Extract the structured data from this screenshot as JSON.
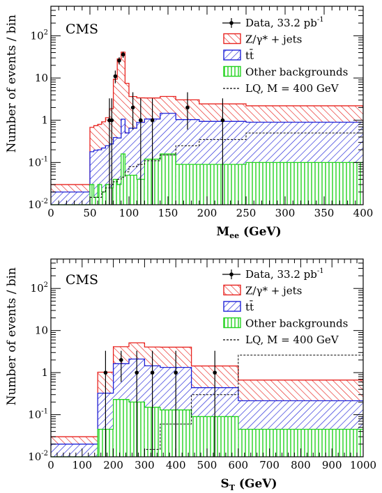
{
  "chart_data": [
    {
      "type": "histogram",
      "title": "CMS",
      "xlabel": {
        "main": "M",
        "sub": "ee",
        "unit": " (GeV)"
      },
      "ylabel": "Number of events / bin",
      "xlim": [
        0,
        400
      ],
      "ylim": [
        0.01,
        500
      ],
      "log_y": true,
      "x_ticks": [
        0,
        50,
        100,
        150,
        200,
        250,
        300,
        350,
        400
      ],
      "y_ticks": [
        {
          "value": 0.01,
          "base": "10",
          "exp": "-2"
        },
        {
          "value": 0.1,
          "base": "10",
          "exp": "-1"
        },
        {
          "value": 1,
          "base": "1",
          "exp": ""
        },
        {
          "value": 10,
          "base": "10",
          "exp": ""
        },
        {
          "value": 100,
          "base": "10",
          "exp": "2"
        }
      ],
      "legend": {
        "position": "top-right",
        "entries": [
          {
            "key": "data",
            "label": "Data, 33.2 pb",
            "sup": "-1"
          },
          {
            "key": "zjets",
            "label": "Z/γ* + jets"
          },
          {
            "key": "ttbar",
            "label": "tt̄"
          },
          {
            "key": "other",
            "label": "Other backgrounds"
          },
          {
            "key": "lq",
            "label": "LQ, M = 400 GeV"
          }
        ]
      },
      "bins": [
        [
          0,
          50
        ],
        [
          50,
          55
        ],
        [
          55,
          60
        ],
        [
          60,
          65
        ],
        [
          65,
          70
        ],
        [
          70,
          75
        ],
        [
          75,
          80
        ],
        [
          80,
          85
        ],
        [
          85,
          90
        ],
        [
          90,
          95
        ],
        [
          95,
          100
        ],
        [
          100,
          110
        ],
        [
          110,
          120
        ],
        [
          120,
          140
        ],
        [
          140,
          160
        ],
        [
          160,
          190
        ],
        [
          190,
          250
        ],
        [
          250,
          400
        ]
      ],
      "stack": {
        "other": [
          0.01,
          0.03,
          0.015,
          0.03,
          0.02,
          0.03,
          0.025,
          0.04,
          0.03,
          0.16,
          0.05,
          0.05,
          0.04,
          0.12,
          0.16,
          0.09,
          0.09,
          0.1
        ],
        "ttbar": [
          0.01,
          0.15,
          0.18,
          0.17,
          0.2,
          0.22,
          0.25,
          0.35,
          0.35,
          0.9,
          0.45,
          0.6,
          0.85,
          0.95,
          1.3,
          0.95,
          0.85,
          0.8
        ],
        "zjets": [
          0.01,
          0.5,
          0.55,
          0.6,
          0.7,
          0.9,
          1.6,
          9,
          28,
          40,
          7,
          3,
          2.5,
          2.3,
          2.2,
          2.0,
          1.5,
          1.3
        ]
      },
      "lq": [
        0,
        0.015,
        0.015,
        0.015,
        0.02,
        0.025,
        0.03,
        0.035,
        0.04,
        0.045,
        0.06,
        0.08,
        0.09,
        0.11,
        0.15,
        0.25,
        0.35,
        0.5
      ],
      "data_points": [
        {
          "x": 75,
          "y": 1,
          "lo": 0.01,
          "hi": 3.3
        },
        {
          "x": 78,
          "y": 1,
          "lo": 0.01,
          "hi": 3.3
        },
        {
          "x": 82.5,
          "y": 11,
          "lo": 7.5,
          "hi": 15
        },
        {
          "x": 87.5,
          "y": 26,
          "lo": 21,
          "hi": 31
        },
        {
          "x": 92.5,
          "y": 36,
          "lo": 30,
          "hi": 42
        },
        {
          "x": 105,
          "y": 2,
          "lo": 0.6,
          "hi": 4.6
        },
        {
          "x": 115,
          "y": 1,
          "lo": 0.01,
          "hi": 3.3
        },
        {
          "x": 130,
          "y": 1,
          "lo": 0.01,
          "hi": 3.3
        },
        {
          "x": 175,
          "y": 2,
          "lo": 0.6,
          "hi": 4.6
        },
        {
          "x": 220,
          "y": 1,
          "lo": 0.01,
          "hi": 3.3
        }
      ]
    },
    {
      "type": "histogram",
      "title": "CMS",
      "xlabel": {
        "main": "S",
        "sub": "T",
        "unit": " (GeV)"
      },
      "ylabel": "Number of events / bin",
      "xlim": [
        0,
        1000
      ],
      "ylim": [
        0.01,
        500
      ],
      "log_y": true,
      "x_ticks": [
        0,
        100,
        200,
        300,
        400,
        500,
        600,
        700,
        800,
        900,
        1000
      ],
      "y_ticks": [
        {
          "value": 0.01,
          "base": "10",
          "exp": "-2"
        },
        {
          "value": 0.1,
          "base": "10",
          "exp": "-1"
        },
        {
          "value": 1,
          "base": "1",
          "exp": ""
        },
        {
          "value": 10,
          "base": "10",
          "exp": ""
        },
        {
          "value": 100,
          "base": "10",
          "exp": "2"
        }
      ],
      "legend": {
        "position": "top-right",
        "entries": [
          {
            "key": "data",
            "label": "Data, 33.2 pb",
            "sup": "-1"
          },
          {
            "key": "zjets",
            "label": "Z/γ* + jets"
          },
          {
            "key": "ttbar",
            "label": "tt̄"
          },
          {
            "key": "other",
            "label": "Other backgrounds"
          },
          {
            "key": "lq",
            "label": "LQ, M = 400 GeV"
          }
        ]
      },
      "bins": [
        [
          0,
          150
        ],
        [
          150,
          200
        ],
        [
          200,
          250
        ],
        [
          250,
          300
        ],
        [
          300,
          350
        ],
        [
          350,
          450
        ],
        [
          450,
          600
        ],
        [
          600,
          1000
        ]
      ],
      "stack": {
        "other": [
          0.01,
          0.045,
          0.23,
          0.2,
          0.15,
          0.13,
          0.09,
          0.045
        ],
        "ttbar": [
          0.01,
          0.28,
          1.4,
          1.9,
          1.3,
          1.2,
          0.35,
          0.17
        ],
        "zjets": [
          0.01,
          0.7,
          2.5,
          3.0,
          2.6,
          2.7,
          1.0,
          0.45
        ]
      },
      "lq": [
        0,
        0.01,
        0.01,
        0.01,
        0.015,
        0.06,
        0.3,
        2.6
      ],
      "data_points": [
        {
          "x": 175,
          "y": 1,
          "lo": 0.01,
          "hi": 3.3
        },
        {
          "x": 225,
          "y": 2,
          "lo": 0.6,
          "hi": 3.3
        },
        {
          "x": 275,
          "y": 1,
          "lo": 0.01,
          "hi": 3.3
        },
        {
          "x": 325,
          "y": 1,
          "lo": 0.01,
          "hi": 3.3
        },
        {
          "x": 400,
          "y": 1,
          "lo": 0.01,
          "hi": 3.3
        },
        {
          "x": 525,
          "y": 1,
          "lo": 0.01,
          "hi": 3.3
        }
      ]
    }
  ],
  "colors": {
    "zjets": "#e8231f",
    "ttbar": "#1e22d8",
    "other": "#22d31e",
    "data": "#000000",
    "lq": "#000000"
  }
}
